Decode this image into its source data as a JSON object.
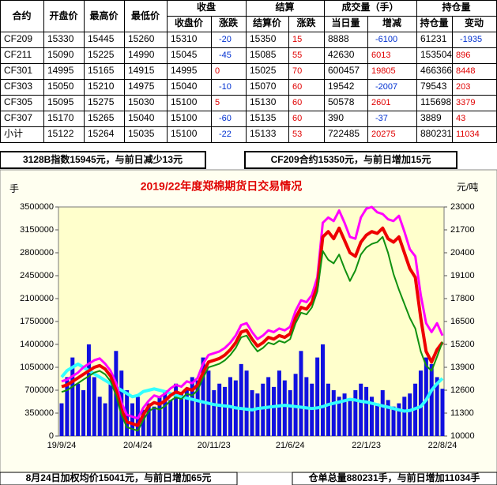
{
  "table": {
    "header": [
      "合约",
      "开盘价",
      "最高价",
      "最低价"
    ],
    "groups": [
      "收盘",
      "结算",
      "成交量（手）",
      "持仓量"
    ],
    "subheader": [
      "收盘价",
      "涨跌",
      "结算价",
      "涨跌",
      "当日量",
      "增减",
      "持仓量",
      "变动"
    ],
    "up_color": "#e00000",
    "down_color": "#0030d0",
    "rows": [
      [
        "CF209",
        15330,
        15445,
        15260,
        15310,
        -20,
        15350,
        15,
        8888,
        -6100,
        61231,
        -1935
      ],
      [
        "CF211",
        15090,
        15225,
        14990,
        15045,
        -45,
        15085,
        55,
        42630,
        6013,
        153504,
        896
      ],
      [
        "CF301",
        14995,
        15165,
        14915,
        14995,
        0,
        15025,
        70,
        600457,
        19805,
        466366,
        8448
      ],
      [
        "CF303",
        15050,
        15210,
        14975,
        15040,
        -10,
        15070,
        60,
        19542,
        -2007,
        79543,
        203
      ],
      [
        "CF305",
        15095,
        15275,
        15030,
        15100,
        5,
        15130,
        60,
        50578,
        2601,
        115698,
        3379
      ],
      [
        "CF307",
        15170,
        15265,
        15040,
        15100,
        -60,
        15135,
        60,
        390,
        -37,
        3889,
        43
      ],
      [
        "小计",
        15122,
        15264,
        15035,
        15100,
        -22,
        15133,
        53,
        722485,
        20275,
        880231,
        11034
      ]
    ]
  },
  "info": {
    "left": "3128B指数15945元，与前日减少13元",
    "right": "CF209合约15350元，与前日增加15元"
  },
  "chart_data": {
    "type": "combo",
    "title": "2019/22年度郑棉期货日交易情况",
    "ylabel": "手",
    "y2label": "元/吨",
    "categories": [
      "19/9/24",
      null,
      null,
      null,
      null,
      null,
      null,
      null,
      null,
      null,
      null,
      null,
      null,
      null,
      "20/4/24",
      null,
      null,
      null,
      null,
      null,
      null,
      null,
      null,
      null,
      null,
      null,
      null,
      null,
      "20/11/23",
      null,
      null,
      null,
      null,
      null,
      null,
      null,
      null,
      null,
      null,
      null,
      null,
      null,
      "21/6/24",
      null,
      null,
      null,
      null,
      null,
      null,
      null,
      null,
      null,
      null,
      null,
      null,
      null,
      "22/1/23",
      null,
      null,
      null,
      null,
      null,
      null,
      null,
      null,
      null,
      null,
      null,
      null,
      null,
      "22/8/24"
    ],
    "ylim": [
      0,
      3500000
    ],
    "yticks": [
      0,
      350000,
      700000,
      1050000,
      1400000,
      1750000,
      2100000,
      2450000,
      2800000,
      3150000,
      3500000
    ],
    "y2lim": [
      10000,
      23000
    ],
    "y2ticks": [
      10000,
      11300,
      12600,
      13900,
      15200,
      16500,
      17800,
      19100,
      20400,
      21700,
      23000
    ],
    "series": [
      {
        "type": "bar",
        "axis": "y",
        "color": "#1010e0",
        "values": [
          500000,
          900000,
          1200000,
          800000,
          700000,
          1400000,
          900000,
          600000,
          500000,
          800000,
          1300000,
          1000000,
          700000,
          500000,
          600000,
          400000,
          500000,
          450000,
          600000,
          700000,
          550000,
          800000,
          650000,
          700000,
          900000,
          850000,
          1200000,
          1000000,
          700000,
          800000,
          750000,
          900000,
          850000,
          1100000,
          1000000,
          700000,
          650000,
          800000,
          900000,
          750000,
          1000000,
          850000,
          700000,
          950000,
          1300000,
          900000,
          800000,
          1200000,
          1400000,
          800000,
          700000,
          600000,
          650000,
          550000,
          700000,
          800000,
          750000,
          600000,
          500000,
          700000,
          550000,
          450000,
          500000,
          600000,
          650000,
          800000,
          1000000,
          1200000,
          1100000,
          900000,
          722485
        ]
      },
      {
        "type": "line",
        "axis": "y",
        "color": "#33ffff",
        "width": 4,
        "values": [
          900000,
          1000000,
          1050000,
          1100000,
          1050000,
          1000000,
          950000,
          900000,
          850000,
          800000,
          750000,
          700000,
          650000,
          600000,
          620000,
          680000,
          700000,
          720000,
          700000,
          680000,
          650000,
          620000,
          600000,
          580000,
          560000,
          540000,
          520000,
          500000,
          480000,
          470000,
          460000,
          450000,
          430000,
          420000,
          410000,
          400000,
          420000,
          430000,
          440000,
          450000,
          460000,
          470000,
          460000,
          450000,
          440000,
          430000,
          420000,
          430000,
          450000,
          480000,
          500000,
          520000,
          540000,
          560000,
          550000,
          530000,
          520000,
          500000,
          480000,
          460000,
          440000,
          420000,
          400000,
          380000,
          390000,
          420000,
          450000,
          550000,
          700000,
          800000,
          880231
        ]
      },
      {
        "type": "line",
        "axis": "y2",
        "color": "#ff00ff",
        "width": 3,
        "values": [
          13100,
          13200,
          13400,
          13600,
          13900,
          14100,
          14300,
          14400,
          14100,
          13700,
          13000,
          11900,
          11200,
          11100,
          11000,
          11600,
          12000,
          12300,
          12200,
          12400,
          12700,
          12900,
          12800,
          13100,
          13000,
          13300,
          14100,
          14600,
          14700,
          14800,
          15000,
          15300,
          15700,
          16300,
          16400,
          15900,
          15500,
          15700,
          16000,
          15900,
          16100,
          16000,
          16200,
          17100,
          17700,
          17600,
          18000,
          19000,
          22100,
          22400,
          22200,
          22800,
          22100,
          21300,
          21200,
          22400,
          22900,
          23000,
          22700,
          22600,
          22300,
          22200,
          22500,
          21600,
          20600,
          20200,
          18000,
          16400,
          15900,
          16400,
          15700
        ]
      },
      {
        "type": "line",
        "axis": "y2",
        "color": "#ee0000",
        "width": 4,
        "values": [
          12800,
          12900,
          13100,
          13300,
          13500,
          13700,
          13900,
          14000,
          13800,
          13400,
          12600,
          11500,
          10800,
          10700,
          10600,
          11200,
          11700,
          11900,
          11800,
          12000,
          12300,
          12500,
          12400,
          12700,
          12600,
          12900,
          13600,
          14200,
          14300,
          14400,
          14600,
          14900,
          15300,
          15900,
          16000,
          15500,
          15100,
          15300,
          15600,
          15500,
          15700,
          15600,
          15800,
          16700,
          17300,
          17200,
          17600,
          18500,
          21300,
          21600,
          21200,
          21800,
          21100,
          20400,
          20200,
          21000,
          21400,
          21600,
          21500,
          21800,
          21200,
          21000,
          21300,
          20400,
          19500,
          19000,
          16700,
          14800,
          14200,
          14900,
          15310
        ]
      },
      {
        "type": "line",
        "axis": "y2",
        "color": "#109010",
        "width": 2,
        "values": [
          12500,
          12600,
          12800,
          13000,
          13200,
          13400,
          13600,
          13700,
          13500,
          13100,
          12300,
          11200,
          10500,
          10400,
          10300,
          10900,
          11400,
          11600,
          11500,
          11700,
          12000,
          12200,
          12100,
          12400,
          12300,
          12600,
          13300,
          13900,
          14000,
          14100,
          14300,
          14600,
          15000,
          15600,
          15700,
          15200,
          14800,
          15000,
          15300,
          15200,
          15400,
          15300,
          15500,
          16400,
          17000,
          16900,
          17300,
          18200,
          20500,
          20000,
          19800,
          20300,
          19500,
          18800,
          19400,
          20300,
          20700,
          20900,
          21000,
          21300,
          20400,
          19200,
          18300,
          17500,
          16700,
          16100,
          14800,
          14000,
          13700,
          14500,
          15350
        ]
      }
    ]
  },
  "footer": {
    "left": "8月24日加权均价15041元，与前日增加65元",
    "right": "仓单总量880231手，与前日增加11034手"
  }
}
